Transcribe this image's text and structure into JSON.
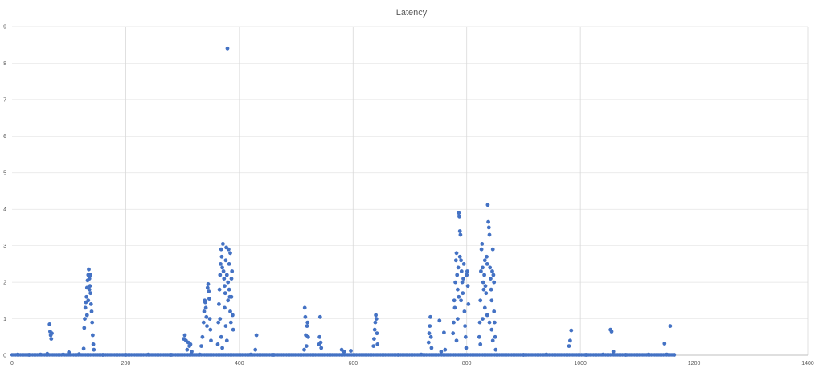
{
  "chart_data": {
    "type": "scatter",
    "title": "Latency",
    "xlabel": "",
    "ylabel": "",
    "xlim": [
      0,
      1400
    ],
    "ylim": [
      0,
      9
    ],
    "x_ticks": [
      "0",
      "200",
      "400",
      "600",
      "800",
      "1000",
      "1200",
      "1400"
    ],
    "y_ticks": [
      "0",
      "1",
      "2",
      "3",
      "4",
      "5",
      "6",
      "7",
      "8",
      "9"
    ],
    "grid": true,
    "legend": "none",
    "series": [
      {
        "color": "#4472C4",
        "points": [
          [
            10,
            0.02
          ],
          [
            30,
            0.01
          ],
          [
            50,
            0.02
          ],
          [
            62,
            0.04
          ],
          [
            66,
            0.85
          ],
          [
            67,
            0.65
          ],
          [
            68,
            0.55
          ],
          [
            69,
            0.45
          ],
          [
            70,
            0.6
          ],
          [
            90,
            0.02
          ],
          [
            100,
            0.08
          ],
          [
            118,
            0.03
          ],
          [
            126,
            0.18
          ],
          [
            127,
            0.75
          ],
          [
            128,
            1.0
          ],
          [
            129,
            1.3
          ],
          [
            130,
            1.45
          ],
          [
            131,
            1.6
          ],
          [
            132,
            1.85
          ],
          [
            133,
            2.05
          ],
          [
            134,
            2.2
          ],
          [
            135,
            2.35
          ],
          [
            136,
            2.1
          ],
          [
            137,
            1.9
          ],
          [
            138,
            1.7
          ],
          [
            139,
            1.4
          ],
          [
            140,
            1.2
          ],
          [
            141,
            0.9
          ],
          [
            142,
            0.55
          ],
          [
            143,
            0.3
          ],
          [
            144,
            0.15
          ],
          [
            132,
            1.1
          ],
          [
            134,
            1.5
          ],
          [
            136,
            1.8
          ],
          [
            138,
            2.2
          ],
          [
            160,
            0.01
          ],
          [
            200,
            0.01
          ],
          [
            240,
            0.02
          ],
          [
            280,
            0.01
          ],
          [
            302,
            0.45
          ],
          [
            304,
            0.55
          ],
          [
            306,
            0.4
          ],
          [
            308,
            0.15
          ],
          [
            310,
            0.35
          ],
          [
            312,
            0.25
          ],
          [
            314,
            0.3
          ],
          [
            316,
            0.1
          ],
          [
            330,
            0.02
          ],
          [
            333,
            0.25
          ],
          [
            335,
            0.5
          ],
          [
            337,
            0.9
          ],
          [
            338,
            1.2
          ],
          [
            339,
            1.5
          ],
          [
            340,
            1.45
          ],
          [
            341,
            1.3
          ],
          [
            342,
            1.05
          ],
          [
            343,
            0.8
          ],
          [
            344,
            1.85
          ],
          [
            345,
            1.95
          ],
          [
            346,
            1.75
          ],
          [
            347,
            1.55
          ],
          [
            348,
            1.0
          ],
          [
            349,
            0.7
          ],
          [
            350,
            0.4
          ],
          [
            362,
            0.3
          ],
          [
            363,
            0.9
          ],
          [
            364,
            1.4
          ],
          [
            365,
            1.8
          ],
          [
            366,
            2.2
          ],
          [
            367,
            2.5
          ],
          [
            368,
            2.9
          ],
          [
            369,
            2.7
          ],
          [
            370,
            2.4
          ],
          [
            371,
            3.05
          ],
          [
            372,
            2.3
          ],
          [
            373,
            2.1
          ],
          [
            374,
            1.9
          ],
          [
            375,
            1.7
          ],
          [
            376,
            2.6
          ],
          [
            377,
            2.95
          ],
          [
            378,
            2.2
          ],
          [
            379,
            8.4
          ],
          [
            380,
            2.0
          ],
          [
            381,
            2.9
          ],
          [
            382,
            1.8
          ],
          [
            383,
            1.6
          ],
          [
            384,
            1.2
          ],
          [
            385,
            0.9
          ],
          [
            386,
            2.1
          ],
          [
            387,
            2.3
          ],
          [
            388,
            1.1
          ],
          [
            389,
            0.7
          ],
          [
            366,
            1.0
          ],
          [
            368,
            0.5
          ],
          [
            370,
            0.2
          ],
          [
            374,
            1.3
          ],
          [
            376,
            0.8
          ],
          [
            378,
            0.4
          ],
          [
            380,
            1.5
          ],
          [
            382,
            2.5
          ],
          [
            384,
            2.8
          ],
          [
            386,
            1.6
          ],
          [
            420,
            0.02
          ],
          [
            428,
            0.15
          ],
          [
            430,
            0.55
          ],
          [
            460,
            0.01
          ],
          [
            514,
            0.15
          ],
          [
            515,
            1.3
          ],
          [
            516,
            1.05
          ],
          [
            517,
            0.55
          ],
          [
            518,
            0.25
          ],
          [
            519,
            0.8
          ],
          [
            520,
            0.9
          ],
          [
            521,
            0.5
          ],
          [
            540,
            0.3
          ],
          [
            541,
            0.5
          ],
          [
            542,
            1.05
          ],
          [
            543,
            0.35
          ],
          [
            544,
            0.2
          ],
          [
            580,
            0.15
          ],
          [
            584,
            0.1
          ],
          [
            596,
            0.12
          ],
          [
            636,
            0.25
          ],
          [
            637,
            0.45
          ],
          [
            638,
            0.7
          ],
          [
            639,
            0.9
          ],
          [
            640,
            1.1
          ],
          [
            641,
            1.0
          ],
          [
            642,
            0.6
          ],
          [
            643,
            0.3
          ],
          [
            680,
            0.01
          ],
          [
            720,
            0.02
          ],
          [
            733,
            0.35
          ],
          [
            734,
            0.6
          ],
          [
            735,
            0.8
          ],
          [
            736,
            1.05
          ],
          [
            737,
            0.5
          ],
          [
            738,
            0.2
          ],
          [
            752,
            0.95
          ],
          [
            755,
            0.1
          ],
          [
            760,
            0.62
          ],
          [
            762,
            0.15
          ],
          [
            776,
            0.6
          ],
          [
            777,
            0.9
          ],
          [
            778,
            1.5
          ],
          [
            779,
            1.3
          ],
          [
            780,
            2.0
          ],
          [
            781,
            2.6
          ],
          [
            782,
            2.8
          ],
          [
            783,
            2.2
          ],
          [
            784,
            1.8
          ],
          [
            785,
            2.4
          ],
          [
            786,
            3.9
          ],
          [
            787,
            3.8
          ],
          [
            788,
            3.4
          ],
          [
            789,
            3.3
          ],
          [
            790,
            2.6
          ],
          [
            791,
            2.3
          ],
          [
            792,
            2.0
          ],
          [
            793,
            1.7
          ],
          [
            794,
            2.1
          ],
          [
            795,
            2.5
          ],
          [
            796,
            1.2
          ],
          [
            797,
            0.8
          ],
          [
            798,
            0.5
          ],
          [
            799,
            0.2
          ],
          [
            800,
            2.2
          ],
          [
            801,
            2.3
          ],
          [
            802,
            1.9
          ],
          [
            803,
            1.4
          ],
          [
            782,
            0.4
          ],
          [
            784,
            1.0
          ],
          [
            786,
            1.6
          ],
          [
            788,
            2.7
          ],
          [
            790,
            1.5
          ],
          [
            822,
            0.5
          ],
          [
            823,
            0.9
          ],
          [
            824,
            1.5
          ],
          [
            825,
            2.3
          ],
          [
            826,
            2.9
          ],
          [
            827,
            3.05
          ],
          [
            828,
            2.4
          ],
          [
            829,
            2.0
          ],
          [
            830,
            1.8
          ],
          [
            831,
            2.2
          ],
          [
            832,
            2.6
          ],
          [
            833,
            1.9
          ],
          [
            834,
            1.7
          ],
          [
            835,
            2.7
          ],
          [
            836,
            2.5
          ],
          [
            837,
            4.12
          ],
          [
            838,
            3.65
          ],
          [
            839,
            3.5
          ],
          [
            840,
            3.3
          ],
          [
            841,
            2.4
          ],
          [
            842,
            2.1
          ],
          [
            843,
            1.8
          ],
          [
            844,
            1.5
          ],
          [
            845,
            2.3
          ],
          [
            846,
            2.9
          ],
          [
            847,
            2.2
          ],
          [
            848,
            1.2
          ],
          [
            849,
            0.9
          ],
          [
            850,
            0.5
          ],
          [
            851,
            0.15
          ],
          [
            824,
            0.3
          ],
          [
            828,
            1.0
          ],
          [
            832,
            1.3
          ],
          [
            836,
            1.1
          ],
          [
            840,
            0.9
          ],
          [
            844,
            0.7
          ],
          [
            846,
            0.4
          ],
          [
            848,
            2.0
          ],
          [
            900,
            0.01
          ],
          [
            940,
            0.02
          ],
          [
            980,
            0.25
          ],
          [
            982,
            0.4
          ],
          [
            984,
            0.68
          ],
          [
            1010,
            0.01
          ],
          [
            1040,
            0.02
          ],
          [
            1053,
            0.7
          ],
          [
            1055,
            0.65
          ],
          [
            1058,
            0.1
          ],
          [
            1080,
            0.01
          ],
          [
            1120,
            0.02
          ],
          [
            1148,
            0.32
          ],
          [
            1152,
            0.02
          ],
          [
            1158,
            0.8
          ],
          [
            1165,
            0.01
          ]
        ]
      }
    ]
  }
}
